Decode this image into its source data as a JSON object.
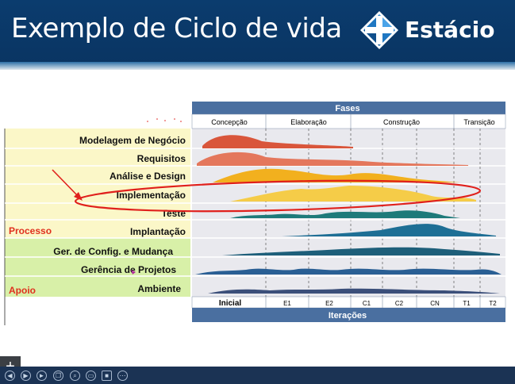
{
  "header": {
    "title": "Exemplo de Ciclo de vida",
    "brand": "Estácio",
    "logo_icon": "diamond-cross-logo-icon"
  },
  "chart_data": {
    "type": "area",
    "title": "Fases",
    "footer_title": "Iterações",
    "phases": [
      "Concepção",
      "Elaboração",
      "Construção",
      "Transição"
    ],
    "iterations": [
      "Inicial",
      "E1",
      "E2",
      "C1",
      "C2",
      "CN",
      "T1",
      "T2"
    ],
    "process_label": "Processo",
    "support_label": "Apoio",
    "disciplines": [
      {
        "name": "Modelagem de Negócio",
        "group": "Processo",
        "color": "#d9563b"
      },
      {
        "name": "Requisitos",
        "group": "Processo",
        "color": "#d9563b"
      },
      {
        "name": "Análise e Design",
        "group": "Processo",
        "color": "#f2b01e"
      },
      {
        "name": "Implementação",
        "group": "Processo",
        "color": "#f2c43a"
      },
      {
        "name": "Teste",
        "group": "Processo",
        "color": "#1e7a7a"
      },
      {
        "name": "Implantação",
        "group": "Processo",
        "color": "#1e6f95"
      },
      {
        "name": "Ger. de Config. e  Mudança",
        "group": "Apoio",
        "color": "#1e5f7a"
      },
      {
        "name": "Gerência de Projetos",
        "group": "Apoio",
        "color": "#2a5f94"
      },
      {
        "name": "Ambiente",
        "group": "Apoio",
        "color": "#3b4f7a"
      }
    ],
    "annotation": "Implementação highlighted with red ellipse and arrow"
  },
  "toolbar": {
    "icons": [
      "prev-icon",
      "next-icon",
      "play-icon",
      "copy-icon",
      "pen-icon",
      "zoom-icon",
      "screen-icon",
      "camera-icon",
      "more-icon"
    ],
    "add_button": "+"
  }
}
